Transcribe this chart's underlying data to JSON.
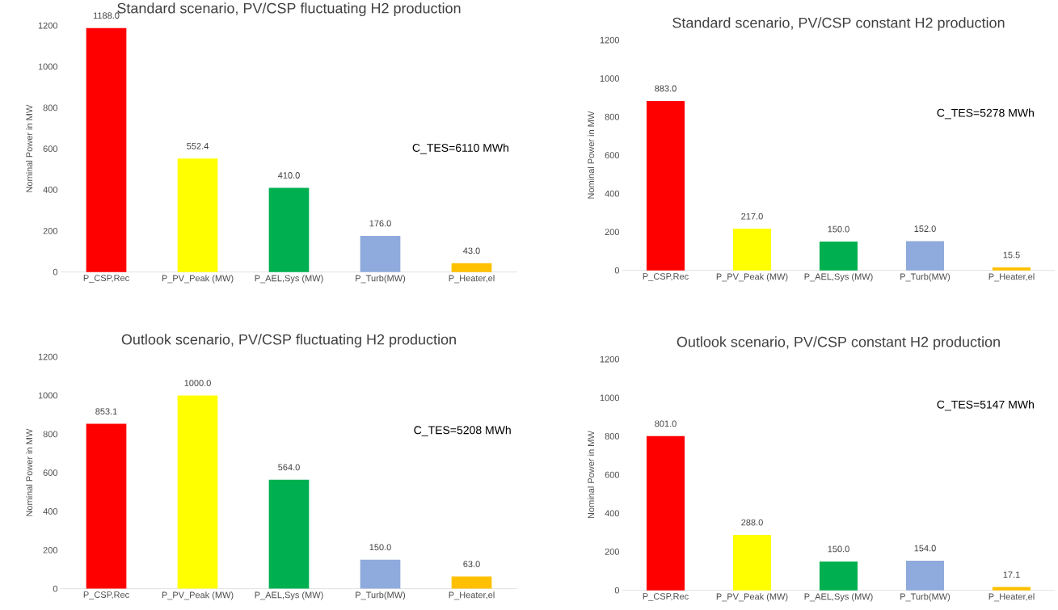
{
  "chart_data": [
    {
      "type": "bar",
      "title": "Standard scenario, PV/CSP fluctuating H2 production",
      "ylabel": "Nominal Power in MW",
      "categories": [
        "P_CSP,Rec",
        "P_PV_Peak (MW)",
        "P_AEL,Sys (MW)",
        "P_Turb(MW)",
        "P_Heater,el"
      ],
      "values": [
        1188.0,
        552.4,
        410.0,
        176.0,
        43.0
      ],
      "value_labels": [
        "1188.0",
        "552.4",
        "410.0",
        "176.0",
        "43.0"
      ],
      "colors": [
        "#ff0000",
        "#ffff00",
        "#00b050",
        "#8faadc",
        "#ffc000"
      ],
      "ylim": [
        0,
        1200
      ],
      "yticks": [
        0,
        200,
        400,
        600,
        800,
        1000,
        1200
      ],
      "annotations": [
        "C_TES=6110 MWh"
      ]
    },
    {
      "type": "bar",
      "title": "Standard scenario, PV/CSP constant H2 production",
      "ylabel": "Nominal Power in MW",
      "categories": [
        "P_CSP,Rec",
        "P_PV_Peak (MW)",
        "P_AEL,Sys (MW)",
        "P_Turb(MW)",
        "P_Heater,el"
      ],
      "values": [
        883.0,
        217.0,
        150.0,
        152.0,
        15.5
      ],
      "value_labels": [
        "883.0",
        "217.0",
        "150.0",
        "152.0",
        "15.5"
      ],
      "colors": [
        "#ff0000",
        "#ffff00",
        "#00b050",
        "#8faadc",
        "#ffc000"
      ],
      "ylim": [
        0,
        1200
      ],
      "yticks": [
        0,
        200,
        400,
        600,
        800,
        1000,
        1200
      ],
      "annotations": [
        "C_TES=5278 MWh"
      ]
    },
    {
      "type": "bar",
      "title": "Outlook scenario, PV/CSP fluctuating H2 production",
      "ylabel": "Nominal Power in MW",
      "categories": [
        "P_CSP,Rec",
        "P_PV_Peak (MW)",
        "P_AEL,Sys (MW)",
        "P_Turb(MW)",
        "P_Heater,el"
      ],
      "values": [
        853.1,
        1000.0,
        564.0,
        150.0,
        63.0
      ],
      "value_labels": [
        "853.1",
        "1000.0",
        "564.0",
        "150.0",
        "63.0"
      ],
      "colors": [
        "#ff0000",
        "#ffff00",
        "#00b050",
        "#8faadc",
        "#ffc000"
      ],
      "ylim": [
        0,
        1200
      ],
      "yticks": [
        0,
        200,
        400,
        600,
        800,
        1000,
        1200
      ],
      "annotations": [
        "C_TES=5208 MWh"
      ]
    },
    {
      "type": "bar",
      "title": "Outlook scenario, PV/CSP constant H2 production",
      "ylabel": "Nominal Power in MW",
      "categories": [
        "P_CSP,Rec",
        "P_PV_Peak (MW)",
        "P_AEL,Sys (MW)",
        "P_Turb(MW)",
        "P_Heater,el"
      ],
      "values": [
        801.0,
        288.0,
        150.0,
        154.0,
        17.1
      ],
      "value_labels": [
        "801.0",
        "288.0",
        "150.0",
        "154.0",
        "17.1"
      ],
      "colors": [
        "#ff0000",
        "#ffff00",
        "#00b050",
        "#8faadc",
        "#ffc000"
      ],
      "ylim": [
        0,
        1200
      ],
      "yticks": [
        0,
        200,
        400,
        600,
        800,
        1000,
        1200
      ],
      "annotations": [
        "C_TES=5147 MWh"
      ]
    }
  ]
}
